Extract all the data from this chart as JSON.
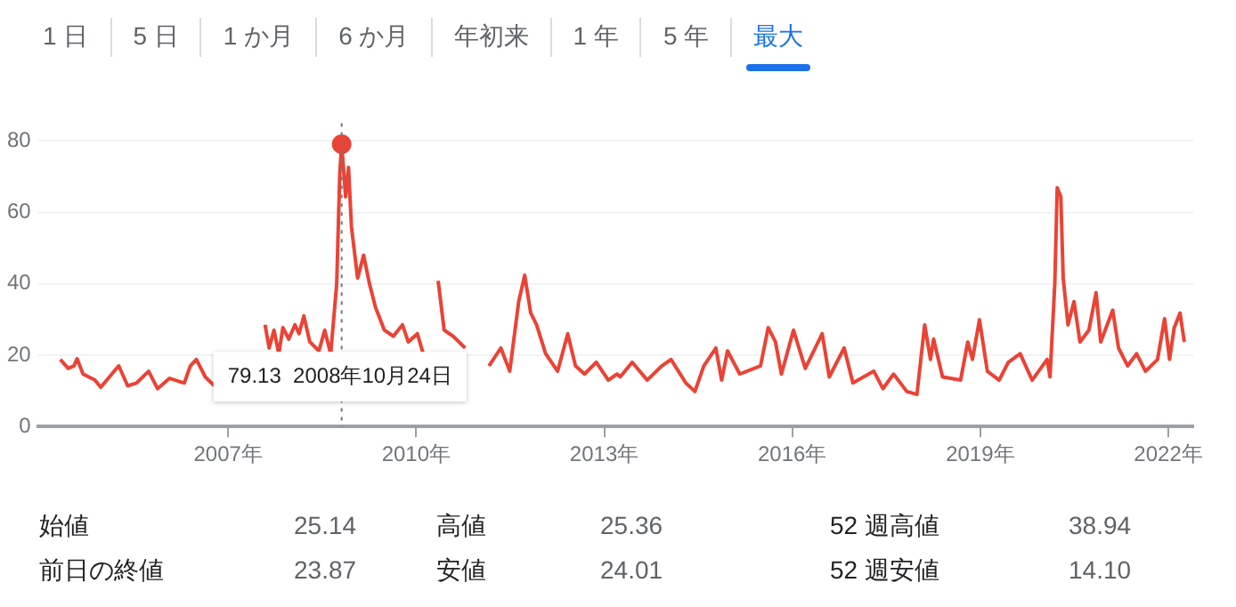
{
  "chart_data": {
    "type": "line",
    "x": [
      "2004-04-28",
      "2004-06-13",
      "2004-07-17",
      "2004-08-04",
      "2004-09-08",
      "2004-11-16",
      "2004-12-20",
      "2005-02-11",
      "2005-04-04",
      "2005-05-26",
      "2005-07-17",
      "2005-09-25",
      "2005-11-16",
      "2006-01-25",
      "2006-04-21",
      "2006-05-26",
      "2006-06-30",
      "2006-08-21",
      "2006-10-13",
      "2007-03-01",
      "2007-08-04",
      "2007-08-28",
      "2007-09-25",
      "2007-10-23",
      "2007-11-16",
      "2007-12-20",
      "2008-01-25",
      "2008-02-18",
      "2008-03-17",
      "2008-04-21",
      "2008-06-13",
      "2008-07-17",
      "2008-08-21",
      "2008-09-25",
      "2008-10-13",
      "2008-10-24",
      "2008-11-16",
      "2008-12-03",
      "2008-12-20",
      "2009-01-25",
      "2009-03-01",
      "2009-04-04",
      "2009-05-09",
      "2009-06-30",
      "2009-08-21",
      "2009-10-13",
      "2009-11-16",
      "2010-01-08",
      "2010-02-11",
      "2010-04-04",
      "2010-05-09",
      "2010-06-13",
      "2010-08-04",
      "2010-10-13",
      "2010-12-20",
      "2011-03-01",
      "2011-05-09",
      "2011-06-30",
      "2011-08-21",
      "2011-09-25",
      "2011-10-30",
      "2011-12-03",
      "2012-01-25",
      "2012-04-04",
      "2012-06-02",
      "2012-07-17",
      "2012-09-08",
      "2012-11-16",
      "2013-01-25",
      "2013-03-17",
      "2013-04-04",
      "2013-06-13",
      "2013-09-08",
      "2013-12-03",
      "2014-01-25",
      "2014-04-21",
      "2014-06-13",
      "2014-08-04",
      "2014-10-13",
      "2014-11-16",
      "2014-12-20",
      "2015-03-01",
      "2015-06-30",
      "2015-08-14",
      "2015-09-25",
      "2015-10-30",
      "2016-01-08",
      "2016-03-17",
      "2016-06-24",
      "2016-08-04",
      "2016-10-30",
      "2016-12-20",
      "2017-04-21",
      "2017-06-13",
      "2017-08-14",
      "2017-10-30",
      "2017-12-28",
      "2018-02-11",
      "2018-03-17",
      "2018-04-04",
      "2018-05-26",
      "2018-09-08",
      "2018-10-20",
      "2018-11-16",
      "2018-12-27",
      "2019-02-11",
      "2019-04-21",
      "2019-06-13",
      "2019-08-21",
      "2019-10-30",
      "2020-01-25",
      "2020-02-11",
      "2020-03-10",
      "2020-03-24",
      "2020-04-14",
      "2020-04-28",
      "2020-05-26",
      "2020-06-30",
      "2020-08-04",
      "2020-09-25",
      "2020-11-06",
      "2020-12-03",
      "2021-02-11",
      "2021-03-17",
      "2021-05-09",
      "2021-06-30",
      "2021-08-21",
      "2021-10-30",
      "2021-12-10",
      "2022-01-08",
      "2022-02-04",
      "2022-03-10",
      "2022-04-04"
    ],
    "series": [
      {
        "color": "#ea4335",
        "values": [
          18.8,
          16.3,
          17,
          19,
          14.7,
          13,
          11,
          14,
          17,
          11.4,
          12.2,
          15.5,
          10.6,
          13.5,
          12.2,
          17,
          18.8,
          13.9,
          11.4,
          null,
          28.5,
          22,
          27,
          20.4,
          27.7,
          24.5,
          28.5,
          26,
          31,
          23.7,
          21.2,
          27,
          20.4,
          40,
          71,
          79.13,
          64.4,
          72.6,
          56,
          41.6,
          48,
          40,
          33.4,
          27,
          25.3,
          28.5,
          23.7,
          26,
          20.4,
          null,
          40.8,
          27,
          25.3,
          22,
          null,
          17,
          22,
          15.5,
          35,
          42.4,
          31.8,
          28.5,
          20.4,
          15.5,
          26,
          17,
          14.7,
          18,
          13,
          14.7,
          13.9,
          18,
          13,
          17,
          18.8,
          12.2,
          9.8,
          17,
          22,
          13,
          21.2,
          14.7,
          17,
          27.7,
          23.7,
          14.7,
          27,
          16.3,
          26,
          13.9,
          22,
          12.2,
          15.5,
          10.6,
          14.7,
          9.8,
          9,
          28.5,
          18.8,
          24.5,
          13.9,
          13,
          23.7,
          18.8,
          29.9,
          15.5,
          13,
          18,
          20.4,
          13,
          18.8,
          13.9,
          40,
          66.9,
          64.4,
          41.6,
          28.5,
          35,
          23.7,
          27,
          37.5,
          23.7,
          32.6,
          22,
          17,
          20.4,
          15.5,
          18.8,
          30.2,
          18.8,
          27.7,
          31.8,
          23.7
        ]
      },
      {
        "type": "scatter",
        "color": "#ea4335",
        "marker": "circle",
        "x": [
          "2008-10-24"
        ],
        "values": [
          79.13
        ]
      }
    ],
    "xlim": [
      "2003-12-20",
      "2022-05-26"
    ],
    "xticks": [
      {
        "value": "2007",
        "label": "2007年"
      },
      {
        "value": "2010",
        "label": "2010年"
      },
      {
        "value": "2013",
        "label": "2013年"
      },
      {
        "value": "2016",
        "label": "2016年"
      },
      {
        "value": "2019",
        "label": "2019年"
      },
      {
        "value": "2022",
        "label": "2022年"
      }
    ],
    "ylim": [
      0,
      85
    ],
    "yticks": [
      0,
      20,
      40,
      60,
      80
    ],
    "grid": "y",
    "marker": "none",
    "legend": false,
    "ref_lines": [
      {
        "axis": "x",
        "value": "2008-10-24",
        "color": "#777777",
        "line_style": "dotted"
      }
    ],
    "annotations": [
      "79.13  2008年10月24日",
      "1 日",
      "5 日",
      "1 か月",
      "6 か月",
      "年初来",
      "1 年",
      "5 年",
      "最大",
      "始値",
      "25.14",
      "高値",
      "25.36",
      "52 週高値",
      "38.94",
      "前日の終値",
      "23.87",
      "安値",
      "24.01",
      "52 週安値",
      "14.10"
    ]
  }
}
